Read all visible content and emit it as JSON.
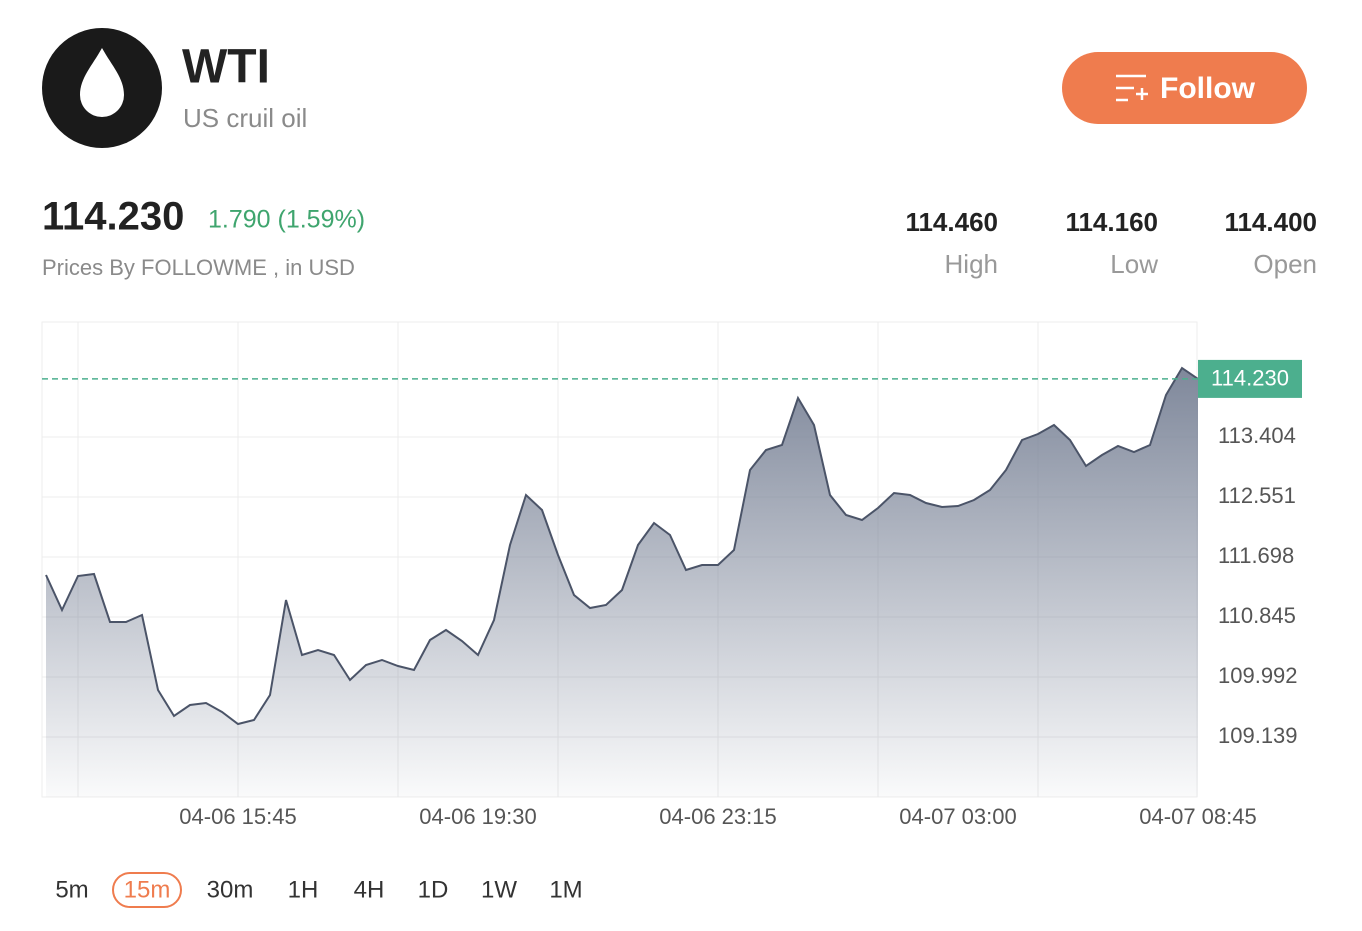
{
  "header": {
    "title": "WTI",
    "subtitle": "US cruil oil",
    "button": "Follow"
  },
  "quote": {
    "price": "114.230",
    "change": "1.790 (1.59%)",
    "source": "Prices By FOLLOWME , in USD",
    "stats": [
      {
        "value": "114.460",
        "label": "High"
      },
      {
        "value": "114.160",
        "label": "Low"
      },
      {
        "value": "114.400",
        "label": "Open"
      }
    ]
  },
  "chart_data": {
    "type": "area",
    "color": "#4b5468",
    "fill": "#7f889b",
    "categories": [
      null,
      null,
      null,
      null,
      null,
      null,
      null,
      null,
      null,
      null,
      null,
      null,
      "04-06 15:45",
      null,
      null,
      null,
      null,
      null,
      null,
      null,
      null,
      null,
      null,
      null,
      null,
      null,
      null,
      "04-06 19:30",
      null,
      null,
      null,
      null,
      null,
      null,
      null,
      null,
      null,
      null,
      null,
      null,
      null,
      null,
      "04-06 23:15",
      null,
      null,
      null,
      null,
      null,
      null,
      null,
      null,
      null,
      null,
      null,
      null,
      null,
      null,
      "04-07 03:00",
      null,
      null,
      null,
      null,
      null,
      null,
      null,
      null,
      null,
      null,
      null,
      null,
      null,
      null,
      "04-07 08:45"
    ],
    "values": [
      111.442,
      110.945,
      111.428,
      111.456,
      110.774,
      110.774,
      110.873,
      109.807,
      109.438,
      109.594,
      109.622,
      109.494,
      109.324,
      109.381,
      109.736,
      111.087,
      110.305,
      110.376,
      110.305,
      109.949,
      110.163,
      110.234,
      110.148,
      110.092,
      110.518,
      110.66,
      110.504,
      110.305,
      110.802,
      111.869,
      112.58,
      112.366,
      111.727,
      111.158,
      110.973,
      111.016,
      111.229,
      111.869,
      112.181,
      112.011,
      111.513,
      111.584,
      111.584,
      111.798,
      112.935,
      113.219,
      113.29,
      113.959,
      113.575,
      112.58,
      112.295,
      112.224,
      112.395,
      112.608,
      112.58,
      112.466,
      112.409,
      112.423,
      112.508,
      112.651,
      112.935,
      113.361,
      113.447,
      113.575,
      113.361,
      112.992,
      113.148,
      113.276,
      113.191,
      113.29,
      114.001,
      114.385,
      114.23
    ],
    "ylim": [
      108.286,
      115.039
    ],
    "yticks": [
      113.404,
      112.551,
      111.698,
      110.845,
      109.992,
      109.139
    ],
    "current": {
      "value": 114.23,
      "label": "114.230"
    },
    "current_color": "#4caf8e",
    "grid": true
  },
  "timeframes": {
    "items": [
      "5m",
      "15m",
      "30m",
      "1H",
      "4H",
      "1D",
      "1W",
      "1M"
    ],
    "selected": 1
  }
}
